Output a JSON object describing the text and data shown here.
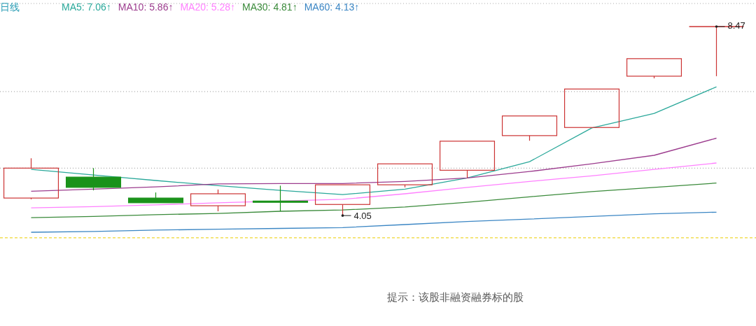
{
  "chart_data": {
    "type": "candlestick",
    "title": "日线",
    "categories": [
      null,
      null,
      null,
      null,
      null,
      null,
      null,
      null,
      null,
      null,
      null,
      null
    ],
    "ohlc": [
      [
        4.46,
        5.39,
        4.43,
        5.16
      ],
      [
        4.95,
        5.16,
        4.64,
        4.71
      ],
      [
        4.46,
        4.59,
        4.35,
        4.35
      ],
      [
        4.28,
        4.66,
        4.15,
        4.56
      ],
      [
        4.39,
        4.75,
        4.15,
        4.36
      ],
      [
        4.31,
        4.77,
        4.05,
        4.77
      ],
      [
        4.77,
        5.26,
        4.71,
        5.26
      ],
      [
        5.11,
        5.79,
        4.93,
        5.79
      ],
      [
        5.92,
        6.38,
        5.8,
        6.38
      ],
      [
        6.11,
        7.01,
        6.11,
        7.01
      ],
      [
        7.31,
        7.72,
        7.26,
        7.72
      ],
      [
        8.47,
        8.47,
        7.31,
        8.47
      ]
    ],
    "colors": [
      "#cc3333",
      "#1a921a",
      "#1a921a",
      "#cc3333",
      "#1a921a",
      "#cc3333",
      "#cc3333",
      "#cc3333",
      "#cc3333",
      "#cc3333",
      "#cc3333",
      "#cc3333"
    ],
    "series": [
      {
        "name": "MA5: 7.06↑",
        "type": "line",
        "color": "#2aa89a",
        "values": [
          5.13,
          5.0,
          4.87,
          4.75,
          4.64,
          4.54,
          4.67,
          4.93,
          5.31,
          6.1,
          6.44,
          7.06
        ]
      },
      {
        "name": "MA10: 5.86↑",
        "type": "line",
        "color": "#9c3c8e",
        "values": [
          4.62,
          4.67,
          4.72,
          4.79,
          4.8,
          4.8,
          4.85,
          4.93,
          5.08,
          5.26,
          5.46,
          5.86
        ]
      },
      {
        "name": "MA20: 5.28↑",
        "type": "line",
        "color": "#ff80ff",
        "values": [
          4.23,
          4.26,
          4.3,
          4.35,
          null,
          4.43,
          4.56,
          4.71,
          4.85,
          4.98,
          5.13,
          5.28
        ]
      },
      {
        "name": "MA30: 4.81↑",
        "type": "line",
        "color": "#3a8a3a",
        "values": [
          4.0,
          4.03,
          4.07,
          4.1,
          4.15,
          4.18,
          4.25,
          4.36,
          4.49,
          4.61,
          4.71,
          4.81
        ]
      },
      {
        "name": "MA60: 4.13↑",
        "type": "line",
        "color": "#3b86c4",
        "values": [
          3.66,
          3.68,
          3.71,
          3.73,
          3.75,
          3.77,
          3.84,
          3.91,
          3.97,
          4.03,
          4.09,
          4.13
        ]
      }
    ],
    "yticks": [
      {
        "value": 5.16,
        "label": null
      },
      {
        "value": 6.95,
        "label": null
      }
    ],
    "grid": "y",
    "legend": "top left",
    "ref_lines": [
      {
        "axis": "y",
        "value": 3.53,
        "color": "#f0d830",
        "line_style": "dashed"
      }
    ],
    "annotations": [
      "8.47",
      "4.05",
      "提示：该股非融资融券标的股"
    ]
  }
}
